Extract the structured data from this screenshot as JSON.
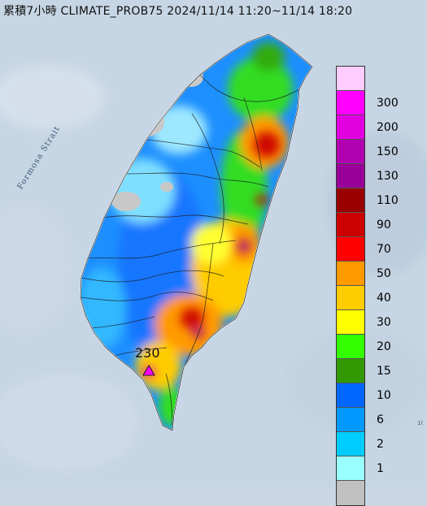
{
  "map": {
    "title": "累積7小時 CLIMATE_PROB75 2024/11/14 11:20~11/14 18:20",
    "strait_label": "Formosa Strait",
    "peak_label": "230",
    "corner_label": "1("
  },
  "legend": {
    "items": [
      {
        "label": "",
        "color": "#ffccff"
      },
      {
        "label": "300",
        "color": "#ff00ff"
      },
      {
        "label": "200",
        "color": "#e000e0"
      },
      {
        "label": "150",
        "color": "#b000b0"
      },
      {
        "label": "130",
        "color": "#990099"
      },
      {
        "label": "110",
        "color": "#990000"
      },
      {
        "label": "90",
        "color": "#cc0000"
      },
      {
        "label": "70",
        "color": "#ff0000"
      },
      {
        "label": "50",
        "color": "#ff9900"
      },
      {
        "label": "40",
        "color": "#ffcc00"
      },
      {
        "label": "30",
        "color": "#ffff00"
      },
      {
        "label": "20",
        "color": "#33ff00"
      },
      {
        "label": "15",
        "color": "#339900"
      },
      {
        "label": "10",
        "color": "#0066ff"
      },
      {
        "label": "6",
        "color": "#0099ff"
      },
      {
        "label": "2",
        "color": "#00ccff"
      },
      {
        "label": "1",
        "color": "#99ffff"
      },
      {
        "label": "",
        "color": "#c0c0c0"
      }
    ]
  }
}
